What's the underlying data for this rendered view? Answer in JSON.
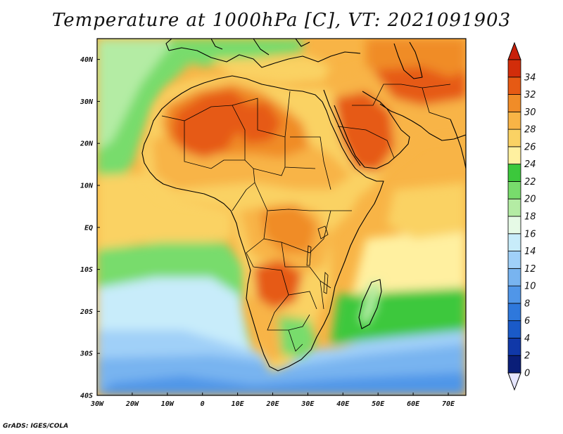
{
  "title": "Temperature at 1000hPa [C], VT: 2021091903",
  "credit": "GrADS: IGES/COLA",
  "map": {
    "lon_range": [
      -30,
      75
    ],
    "lat_range": [
      -40,
      45
    ],
    "x_ticks": [
      "30W",
      "20W",
      "10W",
      "0",
      "10E",
      "20E",
      "30E",
      "40E",
      "50E",
      "60E",
      "70E"
    ],
    "y_ticks": [
      "40S",
      "30S",
      "20S",
      "10S",
      "EQ",
      "10N",
      "20N",
      "30N",
      "40N"
    ]
  },
  "colorbar": {
    "labels": [
      "0",
      "2",
      "4",
      "6",
      "8",
      "10",
      "12",
      "14",
      "16",
      "18",
      "20",
      "22",
      "24",
      "26",
      "28",
      "30",
      "32",
      "34"
    ],
    "colors": [
      "#0a1e78",
      "#1038a8",
      "#1a5ac8",
      "#2e78dc",
      "#5096e8",
      "#78b4f0",
      "#a0d0f8",
      "#c8ecfa",
      "#e6fae6",
      "#b4eca4",
      "#78dc6c",
      "#3cc83c",
      "#fff0a0",
      "#fad264",
      "#f8b446",
      "#f08c28",
      "#e65a14",
      "#d22d0a"
    ],
    "below_color": "#e6e6ff",
    "above_color": "#c8200a"
  }
}
